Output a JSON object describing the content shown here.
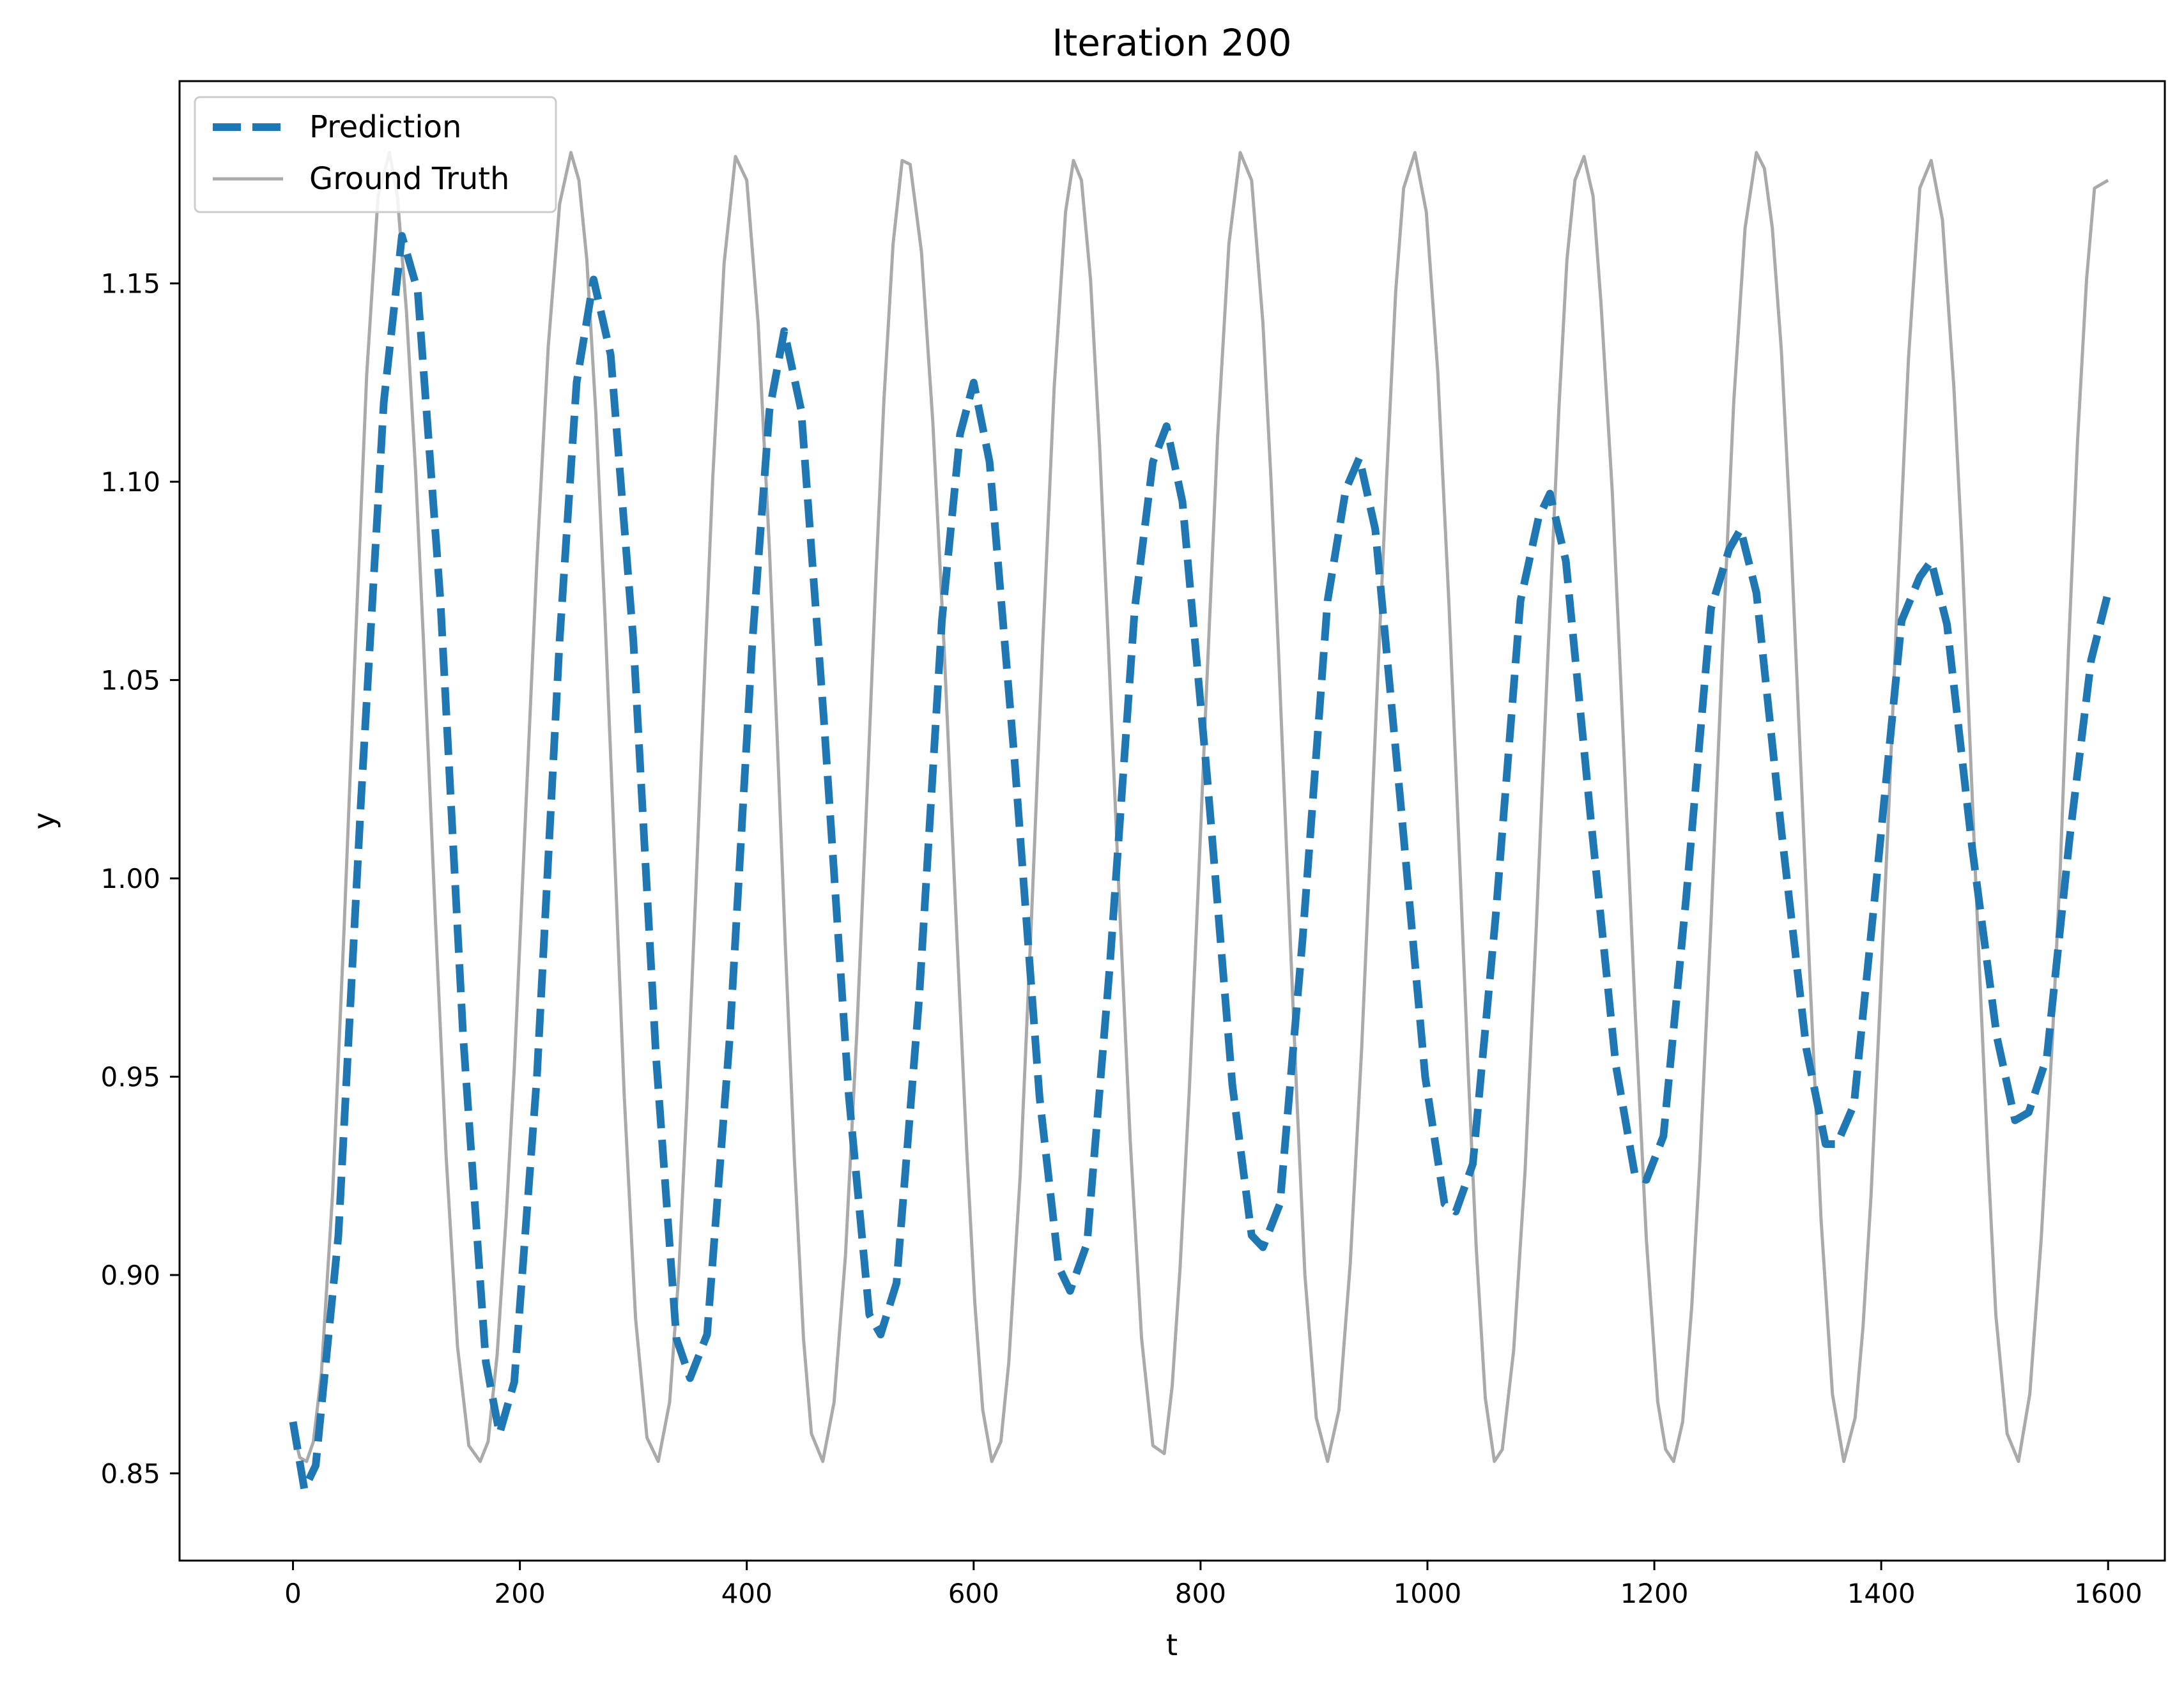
{
  "chart_data": {
    "type": "line",
    "title": "Iteration 200",
    "xlabel": "t",
    "ylabel": "y",
    "xlim": [
      -100,
      1650
    ],
    "ylim": [
      0.828,
      1.201
    ],
    "xticks": [
      0,
      200,
      400,
      600,
      800,
      1000,
      1200,
      1400,
      1600
    ],
    "xtick_labels": [
      "0",
      "200",
      "400",
      "600",
      "800",
      "1000",
      "1200",
      "1400",
      "1600"
    ],
    "yticks": [
      0.85,
      0.9,
      0.95,
      1.0,
      1.05,
      1.1,
      1.15
    ],
    "ytick_labels": [
      "0.85",
      "0.90",
      "0.95",
      "1.00",
      "1.05",
      "1.10",
      "1.15"
    ],
    "grid": false,
    "legend_position": "top-left",
    "colors": {
      "prediction": "#1f77b4",
      "ground_truth": "#aaaaaa"
    },
    "series": [
      {
        "name": "Prediction",
        "style": "dashed",
        "x": [
          0,
          10,
          20,
          40,
          60,
          80,
          96,
          110,
          130,
          150,
          170,
          182,
          195,
          215,
          235,
          250,
          265,
          280,
          300,
          320,
          338,
          350,
          365,
          385,
          405,
          420,
          433,
          448,
          468,
          490,
          508,
          518,
          532,
          552,
          572,
          588,
          600,
          614,
          636,
          658,
          675,
          685,
          700,
          720,
          742,
          758,
          770,
          784,
          806,
          828,
          845,
          855,
          870,
          890,
          912,
          928,
          940,
          954,
          976,
          998,
          1015,
          1025,
          1040,
          1060,
          1082,
          1098,
          1108,
          1122,
          1144,
          1166,
          1183,
          1193,
          1208,
          1228,
          1250,
          1266,
          1276,
          1290,
          1312,
          1334,
          1351,
          1361,
          1376,
          1396,
          1418,
          1434,
          1444,
          1458,
          1480,
          1502,
          1518,
          1530,
          1546,
          1566,
          1585,
          1600
        ],
        "y": [
          0.863,
          0.846,
          0.852,
          0.91,
          1.02,
          1.12,
          1.162,
          1.148,
          1.07,
          0.96,
          0.878,
          0.86,
          0.873,
          0.95,
          1.06,
          1.125,
          1.151,
          1.132,
          1.06,
          0.955,
          0.884,
          0.874,
          0.885,
          0.96,
          1.06,
          1.118,
          1.138,
          1.118,
          1.04,
          0.945,
          0.89,
          0.885,
          0.898,
          0.97,
          1.065,
          1.112,
          1.125,
          1.105,
          1.03,
          0.945,
          0.902,
          0.896,
          0.908,
          0.978,
          1.068,
          1.105,
          1.114,
          1.095,
          1.025,
          0.948,
          0.91,
          0.907,
          0.918,
          0.985,
          1.07,
          1.098,
          1.106,
          1.088,
          1.02,
          0.95,
          0.918,
          0.916,
          0.928,
          0.99,
          1.07,
          1.091,
          1.097,
          1.08,
          1.015,
          0.953,
          0.925,
          0.924,
          0.935,
          0.995,
          1.068,
          1.083,
          1.088,
          1.072,
          1.012,
          0.957,
          0.933,
          0.933,
          0.943,
          1.0,
          1.065,
          1.076,
          1.08,
          1.064,
          1.008,
          0.96,
          0.939,
          0.941,
          0.955,
          1.01,
          1.055,
          1.072
        ]
      },
      {
        "name": "Ground Truth",
        "style": "solid",
        "x": [
          0,
          6,
          12,
          18,
          25,
          35,
          45,
          55,
          65,
          75,
          85,
          92,
          100,
          108,
          115,
          125,
          135,
          145,
          155,
          165,
          172,
          180,
          188,
          195,
          205,
          215,
          225,
          235,
          245,
          252,
          259,
          267,
          275,
          282,
          292,
          302,
          312,
          322,
          332,
          340,
          347,
          355,
          363,
          370,
          380,
          390,
          400,
          410,
          420,
          427,
          434,
          442,
          450,
          457,
          467,
          477,
          487,
          497,
          507,
          514,
          521,
          529,
          537,
          544,
          554,
          564,
          574,
          584,
          594,
          601,
          608,
          616,
          624,
          631,
          641,
          651,
          661,
          671,
          681,
          688,
          695,
          703,
          711,
          718,
          728,
          738,
          748,
          758,
          768,
          775,
          782,
          790,
          798,
          805,
          815,
          825,
          835,
          845,
          855,
          862,
          869,
          877,
          885,
          892,
          902,
          912,
          922,
          932,
          942,
          949,
          956,
          964,
          972,
          979,
          989,
          999,
          1009,
          1019,
          1029,
          1036,
          1043,
          1051,
          1059,
          1066,
          1076,
          1086,
          1096,
          1106,
          1116,
          1123,
          1130,
          1138,
          1146,
          1153,
          1163,
          1173,
          1183,
          1193,
          1203,
          1210,
          1217,
          1225,
          1233,
          1240,
          1250,
          1260,
          1270,
          1280,
          1290,
          1297,
          1304,
          1312,
          1320,
          1327,
          1337,
          1347,
          1357,
          1367,
          1377,
          1384,
          1391,
          1399,
          1407,
          1414,
          1424,
          1434,
          1444,
          1454,
          1464,
          1471,
          1478,
          1486,
          1494,
          1501,
          1511,
          1521,
          1531,
          1541,
          1551,
          1558,
          1565,
          1573,
          1581,
          1588,
          1600
        ],
        "y": [
          0.861,
          0.854,
          0.853,
          0.858,
          0.875,
          0.921,
          0.987,
          1.059,
          1.127,
          1.172,
          1.183,
          1.172,
          1.143,
          1.103,
          1.06,
          0.993,
          0.93,
          0.882,
          0.857,
          0.853,
          0.858,
          0.88,
          0.915,
          0.952,
          1.016,
          1.08,
          1.134,
          1.17,
          1.183,
          1.176,
          1.156,
          1.117,
          1.066,
          1.017,
          0.945,
          0.889,
          0.859,
          0.853,
          0.868,
          0.9,
          0.942,
          0.996,
          1.053,
          1.101,
          1.155,
          1.182,
          1.176,
          1.14,
          1.083,
          1.034,
          0.983,
          0.929,
          0.884,
          0.86,
          0.853,
          0.868,
          0.905,
          0.961,
          1.028,
          1.077,
          1.121,
          1.16,
          1.181,
          1.18,
          1.158,
          1.115,
          1.058,
          0.993,
          0.931,
          0.893,
          0.866,
          0.853,
          0.858,
          0.878,
          0.925,
          0.99,
          1.06,
          1.124,
          1.168,
          1.181,
          1.176,
          1.151,
          1.109,
          1.064,
          0.997,
          0.934,
          0.884,
          0.857,
          0.855,
          0.872,
          0.902,
          0.946,
          0.998,
          1.046,
          1.111,
          1.16,
          1.183,
          1.176,
          1.14,
          1.101,
          1.055,
          0.999,
          0.944,
          0.9,
          0.864,
          0.853,
          0.866,
          0.903,
          0.957,
          1.003,
          1.05,
          1.101,
          1.148,
          1.174,
          1.183,
          1.168,
          1.128,
          1.069,
          1.0,
          0.951,
          0.907,
          0.869,
          0.853,
          0.856,
          0.881,
          0.926,
          0.988,
          1.055,
          1.119,
          1.156,
          1.176,
          1.182,
          1.172,
          1.145,
          1.097,
          1.033,
          0.967,
          0.909,
          0.868,
          0.856,
          0.853,
          0.863,
          0.892,
          0.928,
          0.989,
          1.057,
          1.12,
          1.164,
          1.183,
          1.179,
          1.164,
          1.133,
          1.088,
          1.042,
          0.976,
          0.914,
          0.87,
          0.853,
          0.864,
          0.887,
          0.92,
          0.969,
          1.02,
          1.069,
          1.131,
          1.174,
          1.181,
          1.166,
          1.124,
          1.084,
          1.036,
          0.981,
          0.93,
          0.89,
          0.86,
          0.853,
          0.87,
          0.909,
          0.96,
          1.004,
          1.057,
          1.11,
          1.151,
          1.174,
          1.176
        ]
      }
    ]
  }
}
